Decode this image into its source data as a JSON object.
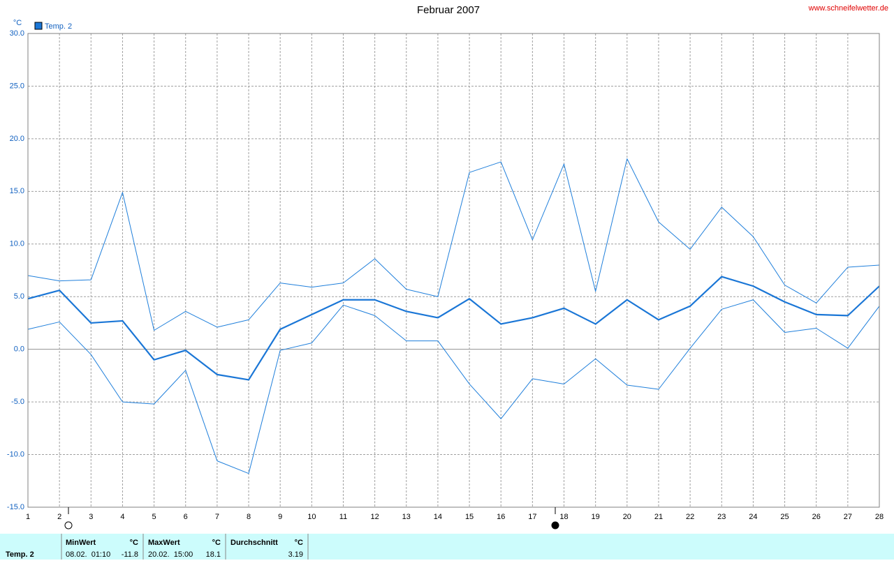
{
  "chart_data": {
    "type": "line",
    "title": "Februar 2007",
    "source": "www.schneifelwetter.de",
    "unit": "°C",
    "legend": "Temp. 2",
    "x": [
      1,
      2,
      3,
      4,
      5,
      6,
      7,
      8,
      9,
      10,
      11,
      12,
      13,
      14,
      15,
      16,
      17,
      18,
      19,
      20,
      21,
      22,
      23,
      24,
      25,
      26,
      27,
      28
    ],
    "xlim": [
      1,
      28
    ],
    "xticks": [
      1,
      2,
      3,
      4,
      5,
      6,
      7,
      8,
      9,
      10,
      11,
      12,
      13,
      14,
      15,
      16,
      17,
      18,
      19,
      20,
      21,
      22,
      23,
      24,
      25,
      26,
      27,
      28
    ],
    "ylim": [
      -15,
      30
    ],
    "yticks": [
      {
        "value": -15,
        "label": "-15.0"
      },
      {
        "value": -10,
        "label": "-10.0"
      },
      {
        "value": -5,
        "label": "-5.0"
      },
      {
        "value": 0,
        "label": "0.0"
      },
      {
        "value": 5,
        "label": "5.0"
      },
      {
        "value": 10,
        "label": "10.0"
      },
      {
        "value": 15,
        "label": "15.0"
      },
      {
        "value": 20,
        "label": "20.0"
      },
      {
        "value": 25,
        "label": "25.0"
      },
      {
        "value": 30,
        "label": "30.0"
      }
    ],
    "grid": true,
    "series": [
      {
        "color": "#1f7fdb",
        "line_width": 1,
        "values": [
          7.0,
          6.5,
          6.6,
          14.9,
          1.8,
          3.6,
          2.1,
          2.8,
          6.3,
          5.9,
          6.3,
          8.6,
          5.7,
          5.0,
          16.8,
          17.8,
          10.4,
          17.6,
          5.5,
          18.1,
          12.1,
          9.5,
          13.5,
          10.7,
          6.1,
          4.4,
          7.8,
          8.0
        ]
      },
      {
        "color": "#1a76d6",
        "line_width": 2.2,
        "values": [
          4.8,
          5.6,
          2.5,
          2.7,
          -1.0,
          -0.1,
          -2.4,
          -2.9,
          1.9,
          3.3,
          4.7,
          4.7,
          3.6,
          3.0,
          4.8,
          2.4,
          3.0,
          3.9,
          2.4,
          4.7,
          2.8,
          4.1,
          6.9,
          6.0,
          4.5,
          3.3,
          3.2,
          6.0
        ]
      },
      {
        "color": "#1f7fdb",
        "line_width": 1,
        "values": [
          1.9,
          2.6,
          -0.5,
          -5.0,
          -5.2,
          -2.0,
          -10.6,
          -11.8,
          -0.1,
          0.6,
          4.2,
          3.2,
          0.8,
          0.8,
          -3.3,
          -6.6,
          -2.8,
          -3.3,
          -0.9,
          -3.4,
          -3.8,
          0.1,
          3.8,
          4.7,
          1.6,
          2.0,
          0.1,
          4.1
        ]
      }
    ]
  },
  "footer": {
    "label": "Temp. 2",
    "stats": [
      {
        "name": "MinWert",
        "unit": "°C",
        "time": "08.02.  01:10",
        "value": -11.8
      },
      {
        "name": "MaxWert",
        "unit": "°C",
        "time": "20.02.  15:00",
        "value": 18.1
      },
      {
        "name": "Durchschnitt",
        "unit": "°C",
        "value": 3.19
      }
    ]
  }
}
